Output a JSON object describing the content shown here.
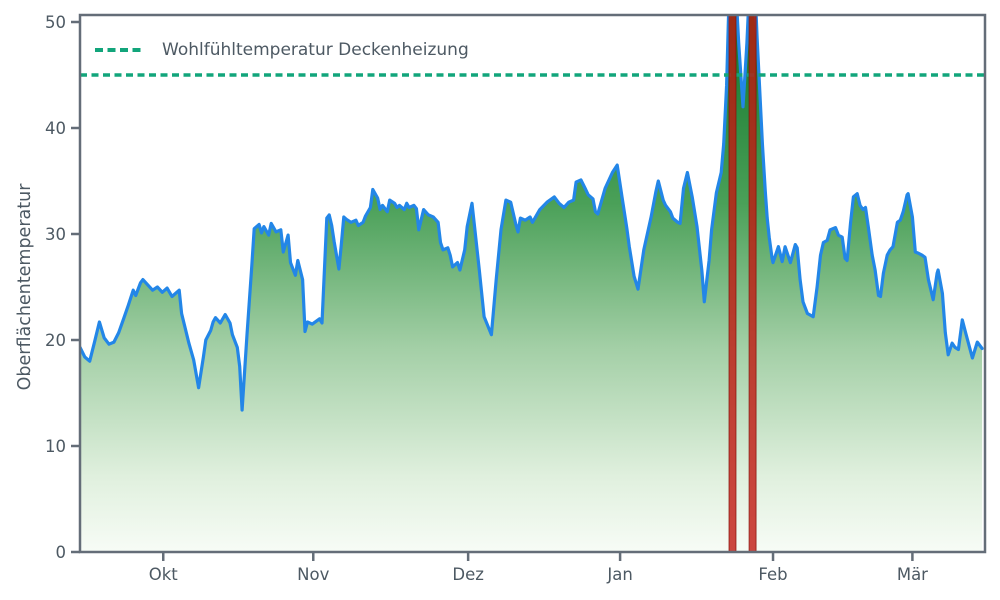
{
  "chart_data": {
    "type": "area",
    "title": "",
    "xlabel": "",
    "ylabel": "Oberflächentemperatur",
    "ylim": [
      0,
      50
    ],
    "yticks": [
      0,
      10,
      20,
      30,
      40,
      50
    ],
    "x_domain_days": [
      0,
      187
    ],
    "xticks": [
      {
        "label": "Okt",
        "day": 17.2
      },
      {
        "label": "Nov",
        "day": 48.2
      },
      {
        "label": "Dez",
        "day": 80.2
      },
      {
        "label": "Jan",
        "day": 111.6
      },
      {
        "label": "Feb",
        "day": 143.2
      },
      {
        "label": "Mär",
        "day": 172.0
      }
    ],
    "grid": false,
    "legend": {
      "position": "top-left",
      "entries": [
        {
          "label": "Wohlfühltemperatur Deckenheizung",
          "color": "#12a57b",
          "style": "dashed"
        }
      ]
    },
    "reference_line": {
      "name": "Wohlfühltemperatur Deckenheizung",
      "value": 45,
      "color": "#12a57b",
      "style": "dashed"
    },
    "event_bands": [
      {
        "from_day": 134.1,
        "to_day": 135.55
      },
      {
        "from_day": 138.25,
        "to_day": 139.7
      }
    ],
    "series": [
      {
        "name": "Oberflächentemperatur",
        "type": "line-area",
        "color": "#2386e7",
        "points": [
          [
            0,
            19.3
          ],
          [
            1,
            18.4
          ],
          [
            2,
            18
          ],
          [
            3,
            19.8
          ],
          [
            4,
            21.7
          ],
          [
            5,
            20.2
          ],
          [
            6,
            19.6
          ],
          [
            7,
            19.8
          ],
          [
            8,
            20.7
          ],
          [
            9,
            22
          ],
          [
            10,
            23.3
          ],
          [
            11,
            24.7
          ],
          [
            11.5,
            24.2
          ],
          [
            12.5,
            25.4
          ],
          [
            13,
            25.7
          ],
          [
            14,
            25.2
          ],
          [
            15,
            24.7
          ],
          [
            16,
            25
          ],
          [
            17,
            24.5
          ],
          [
            18,
            24.9
          ],
          [
            19,
            24.1
          ],
          [
            20.5,
            24.7
          ],
          [
            21,
            22.5
          ],
          [
            22.5,
            19.7
          ],
          [
            23.5,
            18.1
          ],
          [
            24.5,
            15.5
          ],
          [
            25.5,
            18.4
          ],
          [
            26,
            20
          ],
          [
            27,
            20.9
          ],
          [
            27.5,
            21.7
          ],
          [
            28,
            22.1
          ],
          [
            29,
            21.6
          ],
          [
            30,
            22.4
          ],
          [
            31,
            21.6
          ],
          [
            31.5,
            20.5
          ],
          [
            32.5,
            19.3
          ],
          [
            33,
            17.5
          ],
          [
            33.5,
            13.4
          ],
          [
            34.5,
            20.5
          ],
          [
            35.5,
            27
          ],
          [
            36,
            30.5
          ],
          [
            37,
            30.9
          ],
          [
            37.5,
            30.1
          ],
          [
            38,
            30.7
          ],
          [
            39,
            29.9
          ],
          [
            39.5,
            31
          ],
          [
            40.5,
            30.2
          ],
          [
            41.5,
            30.4
          ],
          [
            42,
            28.3
          ],
          [
            43,
            29.9
          ],
          [
            43.5,
            27.3
          ],
          [
            44.5,
            26.1
          ],
          [
            45,
            27.5
          ],
          [
            46,
            25.7
          ],
          [
            46.5,
            20.8
          ],
          [
            47,
            21.7
          ],
          [
            48,
            21.5
          ],
          [
            49.5,
            22
          ],
          [
            50,
            21.6
          ],
          [
            51,
            31.5
          ],
          [
            51.5,
            31.8
          ],
          [
            52,
            30.8
          ],
          [
            52.5,
            29.3
          ],
          [
            53.5,
            26.7
          ],
          [
            54,
            29
          ],
          [
            54.5,
            31.6
          ],
          [
            55,
            31.4
          ],
          [
            56,
            31.1
          ],
          [
            57,
            31.3
          ],
          [
            57.5,
            30.8
          ],
          [
            58.5,
            31.1
          ],
          [
            59,
            31.7
          ],
          [
            60,
            32.5
          ],
          [
            60.5,
            34.2
          ],
          [
            61.5,
            33.4
          ],
          [
            62,
            32.3
          ],
          [
            62.5,
            32.7
          ],
          [
            63.5,
            32.1
          ],
          [
            64,
            33.2
          ],
          [
            65,
            32.9
          ],
          [
            65.5,
            32.5
          ],
          [
            66,
            32.7
          ],
          [
            67,
            32.3
          ],
          [
            67.5,
            32.9
          ],
          [
            68,
            32.5
          ],
          [
            69,
            32.7
          ],
          [
            69.5,
            32.4
          ],
          [
            70,
            30.4
          ],
          [
            71,
            32.3
          ],
          [
            72,
            31.8
          ],
          [
            73,
            31.6
          ],
          [
            74,
            31.1
          ],
          [
            74.5,
            29.2
          ],
          [
            75,
            28.5
          ],
          [
            76,
            28.7
          ],
          [
            76.5,
            28
          ],
          [
            77,
            26.9
          ],
          [
            78,
            27.3
          ],
          [
            78.5,
            26.6
          ],
          [
            79.5,
            28.5
          ],
          [
            80,
            30.7
          ],
          [
            81,
            32.9
          ],
          [
            82.5,
            26.6
          ],
          [
            83.5,
            22.2
          ],
          [
            85,
            20.5
          ],
          [
            86,
            25.7
          ],
          [
            87,
            30.4
          ],
          [
            88,
            33.2
          ],
          [
            89,
            33
          ],
          [
            90,
            31
          ],
          [
            90.5,
            30.2
          ],
          [
            91,
            31.5
          ],
          [
            92,
            31.3
          ],
          [
            93,
            31.6
          ],
          [
            93.5,
            31.1
          ],
          [
            95,
            32.3
          ],
          [
            96.5,
            33
          ],
          [
            98,
            33.5
          ],
          [
            99,
            32.9
          ],
          [
            100,
            32.5
          ],
          [
            101,
            33
          ],
          [
            102,
            33.2
          ],
          [
            102.5,
            34.9
          ],
          [
            103.5,
            35.1
          ],
          [
            104.5,
            34.2
          ],
          [
            105,
            33.7
          ],
          [
            106,
            33.3
          ],
          [
            106.5,
            32.1
          ],
          [
            107,
            31.9
          ],
          [
            108.5,
            34.3
          ],
          [
            110,
            35.8
          ],
          [
            111,
            36.5
          ],
          [
            112,
            33.5
          ],
          [
            113,
            30.5
          ],
          [
            113.5,
            28.8
          ],
          [
            114.5,
            26
          ],
          [
            115.3,
            24.8
          ],
          [
            116.5,
            28.5
          ],
          [
            118,
            31.6
          ],
          [
            119,
            34
          ],
          [
            119.5,
            35
          ],
          [
            120.5,
            33.2
          ],
          [
            121,
            32.7
          ],
          [
            122,
            32.1
          ],
          [
            122.5,
            31.5
          ],
          [
            123.5,
            31.1
          ],
          [
            124,
            31
          ],
          [
            124.7,
            34.3
          ],
          [
            125.5,
            35.8
          ],
          [
            126.5,
            33.5
          ],
          [
            127.5,
            30.7
          ],
          [
            128.5,
            26.5
          ],
          [
            129,
            23.6
          ],
          [
            130,
            27.5
          ],
          [
            130.5,
            30.4
          ],
          [
            131.5,
            33.9
          ],
          [
            132.5,
            35.8
          ],
          [
            133,
            38.5
          ],
          [
            133.6,
            44
          ],
          [
            134,
            50.5
          ],
          [
            134.6,
            55
          ],
          [
            135.4,
            54
          ],
          [
            136.1,
            48
          ],
          [
            137,
            42
          ],
          [
            137.8,
            48
          ],
          [
            138.4,
            54
          ],
          [
            139.3,
            55
          ],
          [
            139.9,
            48.5
          ],
          [
            140.4,
            44
          ],
          [
            141,
            38.5
          ],
          [
            141.6,
            34
          ],
          [
            142,
            31.5
          ],
          [
            142.4,
            29.7
          ],
          [
            143,
            27.7
          ],
          [
            143.2,
            27.3
          ],
          [
            144.3,
            28.8
          ],
          [
            145.1,
            27.4
          ],
          [
            145.7,
            28.8
          ],
          [
            146.8,
            27.3
          ],
          [
            147.8,
            29
          ],
          [
            148.2,
            28.7
          ],
          [
            148.8,
            25.7
          ],
          [
            149.4,
            23.6
          ],
          [
            150.3,
            22.5
          ],
          [
            151.5,
            22.2
          ],
          [
            152.3,
            25
          ],
          [
            153,
            28
          ],
          [
            153.6,
            29.2
          ],
          [
            154.4,
            29.4
          ],
          [
            155,
            30.4
          ],
          [
            156.1,
            30.6
          ],
          [
            156.7,
            29.9
          ],
          [
            157.5,
            29.7
          ],
          [
            158.1,
            27.7
          ],
          [
            158.5,
            27.5
          ],
          [
            159.2,
            31
          ],
          [
            159.8,
            33.5
          ],
          [
            160.6,
            33.8
          ],
          [
            161.2,
            32.7
          ],
          [
            161.8,
            32.3
          ],
          [
            162.3,
            32.5
          ],
          [
            162.9,
            30.6
          ],
          [
            163.7,
            28
          ],
          [
            164.3,
            26.6
          ],
          [
            165,
            24.2
          ],
          [
            165.4,
            24.1
          ],
          [
            166,
            26.3
          ],
          [
            166.8,
            28
          ],
          [
            167.4,
            28.5
          ],
          [
            168,
            28.8
          ],
          [
            168.9,
            31.1
          ],
          [
            169.5,
            31.3
          ],
          [
            170.1,
            32.1
          ],
          [
            170.9,
            33.7
          ],
          [
            171.1,
            33.8
          ],
          [
            172,
            31.6
          ],
          [
            172.6,
            28.3
          ],
          [
            173.2,
            28.2
          ],
          [
            174,
            28
          ],
          [
            174.6,
            27.8
          ],
          [
            175.3,
            25.7
          ],
          [
            176.1,
            24.2
          ],
          [
            176.3,
            23.8
          ],
          [
            177.1,
            26.3
          ],
          [
            177.3,
            26.6
          ],
          [
            178.2,
            24.4
          ],
          [
            178.8,
            20.7
          ],
          [
            179.4,
            18.6
          ],
          [
            180.2,
            19.7
          ],
          [
            180.8,
            19.3
          ],
          [
            181.5,
            19.1
          ],
          [
            182.3,
            21.9
          ],
          [
            183,
            20.7
          ],
          [
            184.4,
            18.3
          ],
          [
            185.4,
            19.8
          ],
          [
            186.4,
            19.2
          ]
        ]
      }
    ]
  },
  "colors": {
    "line": "#2386e7",
    "comfort_line": "#12a57b",
    "event_bar_fill": "rgba(193,25,18,0.8)",
    "event_bar_edge": "rgba(134,16,10,0.6)",
    "spine": "#646d78",
    "tick_text": "#4d5963",
    "area_gradient": [
      [
        "0%",
        "#10752a"
      ],
      [
        "35%",
        "#4aa058"
      ],
      [
        "62%",
        "#a3cfa6"
      ],
      [
        "86%",
        "#e0f0de"
      ],
      [
        "100%",
        "#f7fcf6"
      ]
    ]
  }
}
